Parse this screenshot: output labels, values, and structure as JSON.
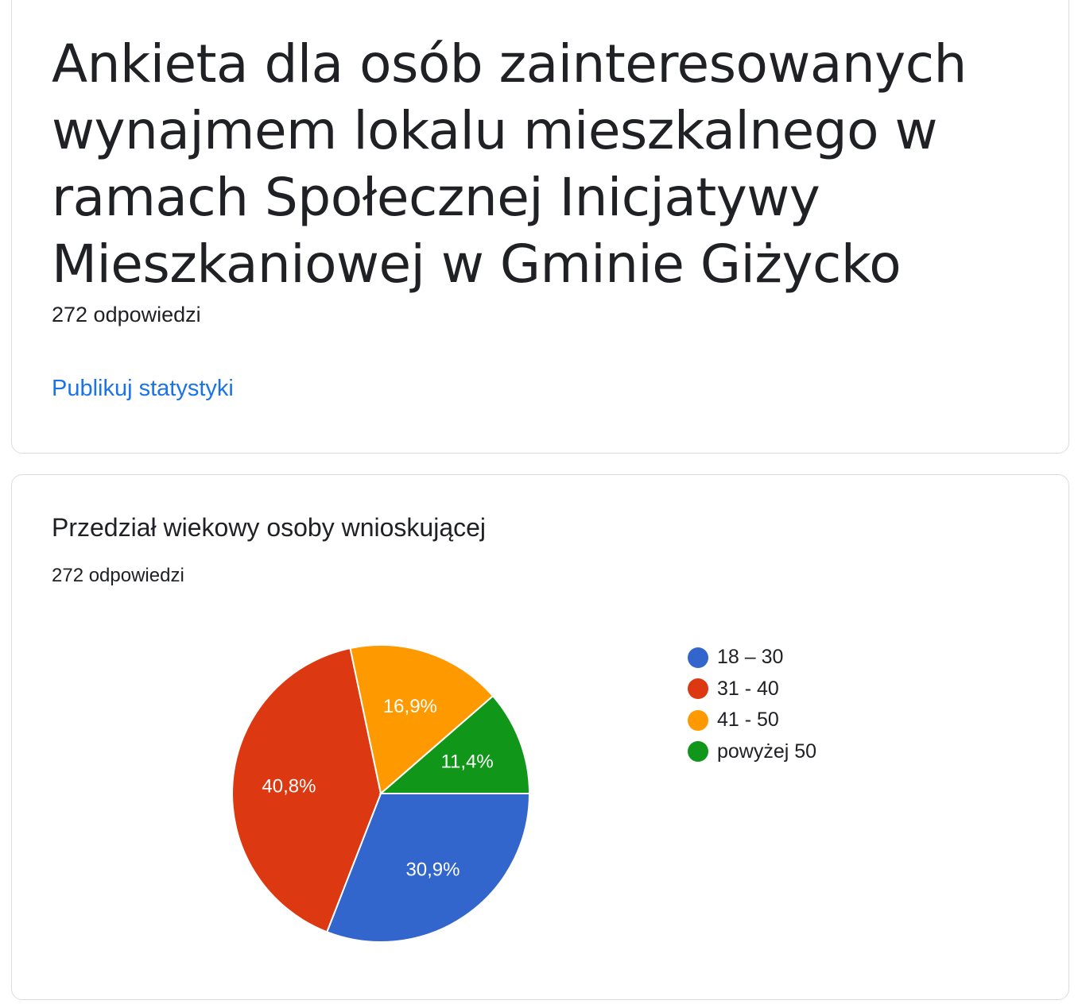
{
  "header": {
    "title": "Ankieta dla osób zainteresowanych wynajmem lokalu mieszkalnego w ramach Społecznej Inicjatywy Mieszkaniowej w Gminie Giżycko",
    "responses": "272 odpowiedzi",
    "publish_link": "Publikuj statystyki"
  },
  "question": {
    "title": "Przedział wiekowy osoby wnioskującej",
    "responses": "272 odpowiedzi"
  },
  "chart_data": {
    "type": "pie",
    "categories": [
      "18 – 30",
      "31 - 40",
      "41 - 50",
      "powyżej 50"
    ],
    "values": [
      30.9,
      40.8,
      16.9,
      11.4
    ],
    "labels": [
      "30,9%",
      "40,8%",
      "16,9%",
      "11,4%"
    ],
    "colors": [
      "#3366cc",
      "#dc3912",
      "#ff9900",
      "#109618"
    ],
    "legend_position": "right"
  }
}
